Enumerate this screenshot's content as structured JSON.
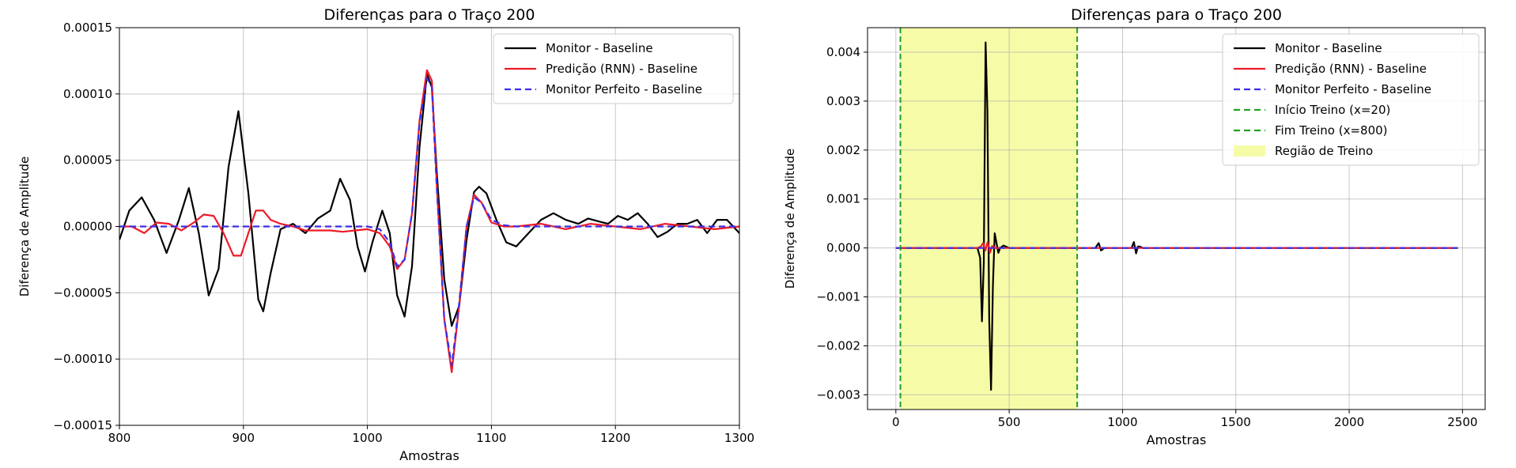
{
  "chart_data": [
    {
      "type": "line",
      "title": "Diferenças para o Traço 200",
      "xlabel": "Amostras",
      "ylabel": "Diferença de Amplitude",
      "xlim": [
        800,
        1300
      ],
      "ylim": [
        -0.00015,
        0.00015
      ],
      "xticks": [
        800,
        900,
        1000,
        1100,
        1200,
        1300
      ],
      "xtick_labels": [
        "800",
        "900",
        "1000",
        "1100",
        "1200",
        "1300"
      ],
      "yticks": [
        -0.00015,
        -0.0001,
        -5e-05,
        0,
        5e-05,
        0.0001,
        0.00015
      ],
      "ytick_labels": [
        "−0.00015",
        "−0.00010",
        "−0.00005",
        "0.00000",
        "0.00005",
        "0.00010",
        "0.00015"
      ],
      "grid": true,
      "legend_position": "top-right",
      "series": [
        {
          "name": "Monitor - Baseline",
          "color": "#000000",
          "dash": "solid",
          "x": [
            800,
            808,
            818,
            828,
            838,
            848,
            856,
            864,
            872,
            880,
            888,
            896,
            904,
            912,
            916,
            922,
            930,
            940,
            950,
            960,
            970,
            978,
            986,
            992,
            998,
            1004,
            1012,
            1018,
            1024,
            1030,
            1036,
            1042,
            1048,
            1052,
            1056,
            1062,
            1068,
            1074,
            1080,
            1086,
            1090,
            1096,
            1104,
            1112,
            1120,
            1130,
            1140,
            1150,
            1160,
            1170,
            1178,
            1186,
            1194,
            1202,
            1210,
            1218,
            1226,
            1234,
            1242,
            1250,
            1258,
            1266,
            1274,
            1282,
            1290,
            1300
          ],
          "y": [
            -1e-05,
            1.2e-05,
            2.2e-05,
            5e-06,
            -2e-05,
            5e-06,
            2.9e-05,
            -5e-06,
            -5.2e-05,
            -3.2e-05,
            4.5e-05,
            8.7e-05,
            2.5e-05,
            -5.5e-05,
            -6.4e-05,
            -3.5e-05,
            -2e-06,
            2e-06,
            -5e-06,
            6e-06,
            1.2e-05,
            3.6e-05,
            2e-05,
            -1.5e-05,
            -3.4e-05,
            -1.2e-05,
            1.2e-05,
            -5e-06,
            -5.2e-05,
            -6.8e-05,
            -3e-05,
            6e-05,
            0.000115,
            0.000105,
            4e-05,
            -4e-05,
            -7.5e-05,
            -6e-05,
            -1e-05,
            2.6e-05,
            3e-05,
            2.5e-05,
            5e-06,
            -1.2e-05,
            -1.5e-05,
            -5e-06,
            5e-06,
            1e-05,
            5e-06,
            2e-06,
            6e-06,
            4e-06,
            2e-06,
            8e-06,
            5e-06,
            1e-05,
            2e-06,
            -8e-06,
            -4e-06,
            2e-06,
            2e-06,
            5e-06,
            -5e-06,
            5e-06,
            5e-06,
            -5e-06
          ]
        },
        {
          "name": "Predição (RNN) - Baseline",
          "color": "#ee1b28",
          "dash": "solid",
          "x": [
            800,
            810,
            820,
            830,
            840,
            850,
            860,
            868,
            876,
            884,
            892,
            898,
            904,
            910,
            916,
            922,
            930,
            940,
            950,
            960,
            970,
            980,
            990,
            1000,
            1010,
            1018,
            1024,
            1030,
            1036,
            1042,
            1048,
            1052,
            1056,
            1062,
            1068,
            1074,
            1080,
            1086,
            1092,
            1100,
            1110,
            1120,
            1140,
            1160,
            1180,
            1200,
            1220,
            1240,
            1260,
            1280,
            1300
          ],
          "y": [
            0,
            0,
            -5e-06,
            3e-06,
            2e-06,
            -3e-06,
            3e-06,
            9e-06,
            8e-06,
            -5e-06,
            -2.2e-05,
            -2.2e-05,
            -5e-06,
            1.2e-05,
            1.2e-05,
            5e-06,
            2e-06,
            0,
            -3e-06,
            -3e-06,
            -3e-06,
            -4e-06,
            -3e-06,
            -2e-06,
            -5e-06,
            -1.5e-05,
            -3.2e-05,
            -2.5e-05,
            1e-05,
            8e-05,
            0.000118,
            0.00011,
            3e-05,
            -7e-05,
            -0.00011,
            -6e-05,
            0,
            2.4e-05,
            1.8e-05,
            3e-06,
            0,
            0,
            2e-06,
            -2e-06,
            2e-06,
            0,
            -2e-06,
            2e-06,
            0,
            -2e-06,
            0
          ]
        },
        {
          "name": "Monitor Perfeito - Baseline",
          "color": "#3d2ee8",
          "dash": "dashed",
          "x": [
            800,
            1000,
            1010,
            1018,
            1024,
            1030,
            1036,
            1042,
            1048,
            1052,
            1056,
            1062,
            1068,
            1074,
            1080,
            1086,
            1092,
            1100,
            1110,
            1120,
            1300
          ],
          "y": [
            0,
            0,
            -2e-06,
            -1.2e-05,
            -3e-05,
            -2.5e-05,
            1e-05,
            7.8e-05,
            0.000112,
            0.000105,
            2.8e-05,
            -7e-05,
            -0.000105,
            -5.8e-05,
            0,
            2.2e-05,
            1.8e-05,
            5e-06,
            1e-06,
            0,
            0
          ]
        }
      ]
    },
    {
      "type": "line",
      "title": "Diferenças para o Traço 200",
      "xlabel": "Amostras",
      "ylabel": "Diferença de Amplitude",
      "xlim": [
        -125,
        2600
      ],
      "ylim": [
        -0.0033,
        0.0045
      ],
      "xticks": [
        0,
        500,
        1000,
        1500,
        2000,
        2500
      ],
      "xtick_labels": [
        "0",
        "500",
        "1000",
        "1500",
        "2000",
        "2500"
      ],
      "yticks": [
        -0.003,
        -0.002,
        -0.001,
        0,
        0.001,
        0.002,
        0.003,
        0.004
      ],
      "ytick_labels": [
        "−0.003",
        "−0.002",
        "−0.001",
        "0.000",
        "0.001",
        "0.002",
        "0.003",
        "0.004"
      ],
      "grid": true,
      "legend_position": "top-right",
      "training_region": {
        "label": "Região de Treino",
        "x_start": 20,
        "x_end": 800,
        "color": "#f6fba8"
      },
      "vlines": [
        {
          "name": "Início Treino (x=20)",
          "x": 20,
          "color": "#22a022"
        },
        {
          "name": "Fim Treino (x=800)",
          "x": 800,
          "color": "#22a022"
        }
      ],
      "series": [
        {
          "name": "Monitor - Baseline",
          "color": "#000000",
          "dash": "solid",
          "x": [
            0,
            340,
            360,
            372,
            380,
            388,
            396,
            404,
            412,
            420,
            428,
            436,
            444,
            452,
            460,
            475,
            500,
            800,
            880,
            895,
            905,
            920,
            1040,
            1050,
            1060,
            1068,
            1075,
            1090,
            2480
          ],
          "y": [
            0,
            0,
            0,
            -0.0002,
            -0.0015,
            -0.0003,
            0.0042,
            0.0028,
            -0.0015,
            -0.0029,
            -0.0008,
            0.0003,
            0.0001,
            -0.0001,
            0,
            5e-05,
            0,
            0,
            0,
            0.0001,
            -5e-05,
            0,
            0,
            0.00012,
            -0.00011,
            3e-05,
            3e-05,
            0,
            0
          ]
        },
        {
          "name": "Predição (RNN) - Baseline",
          "color": "#ee1b28",
          "dash": "solid",
          "x": [
            0,
            360,
            375,
            385,
            395,
            405,
            415,
            425,
            440,
            460,
            2480
          ],
          "y": [
            0,
            0,
            3e-05,
            0.0001,
            -5e-05,
            0.00012,
            -0.0001,
            4e-05,
            0,
            0,
            0
          ]
        },
        {
          "name": "Monitor Perfeito - Baseline",
          "color": "#3d2ee8",
          "dash": "dashed",
          "x": [
            0,
            2480
          ],
          "y": [
            0,
            0
          ]
        }
      ]
    }
  ]
}
